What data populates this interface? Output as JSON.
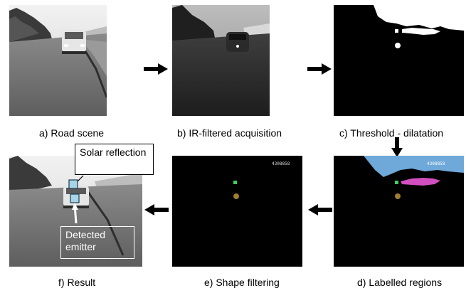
{
  "captions": {
    "a": "a) Road scene",
    "b": "b) IR-filtered acquisition",
    "c": "c) Threshold - dilatation",
    "d": "d) Labelled regions",
    "e": "e) Shape filtering",
    "f": "f) Result"
  },
  "callouts": {
    "solar": "Solar reflection",
    "emitter": "Detected emitter"
  },
  "frame_code": "4308858",
  "colors": {
    "region_sky": "#6fa9d9",
    "region_reflection": "#d24fbf",
    "detected_green": "#3fcf55",
    "detected_olive": "#a07d2e",
    "panel_black": "#000000"
  }
}
